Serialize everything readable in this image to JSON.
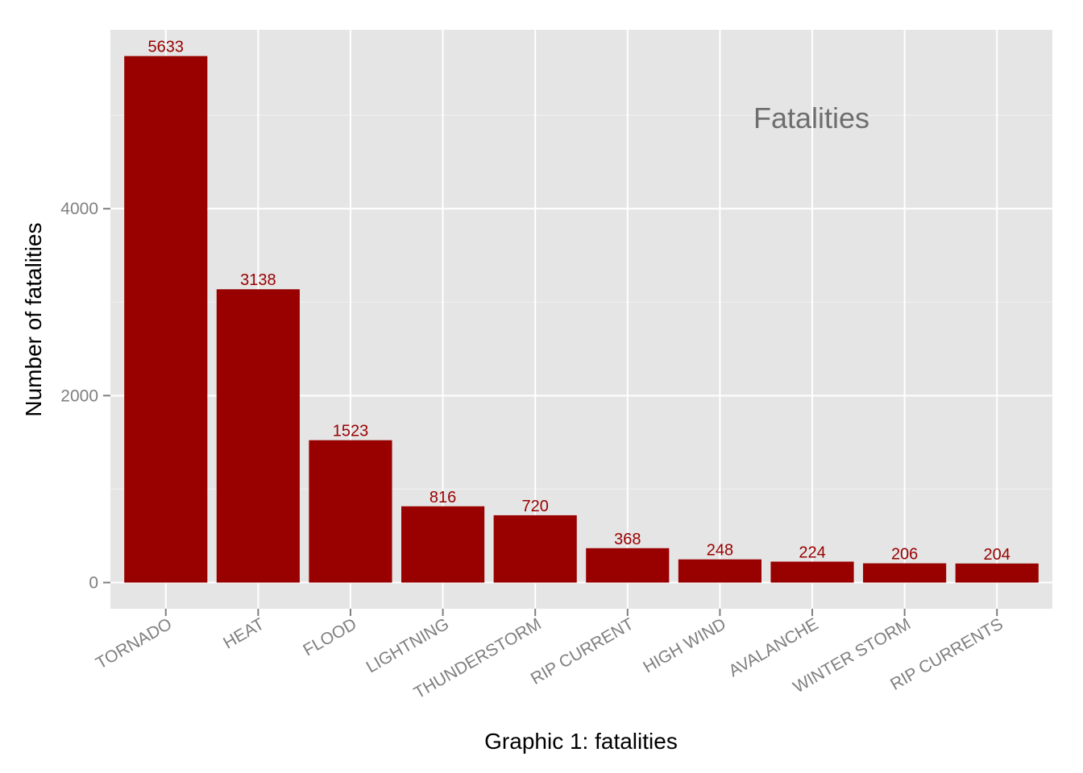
{
  "chart_data": {
    "type": "bar",
    "categories": [
      "TORNADO",
      "HEAT",
      "FLOOD",
      "LIGHTNING",
      "THUNDERSTORM",
      "RIP CURRENT",
      "HIGH WIND",
      "AVALANCHE",
      "WINTER STORM",
      "RIP CURRENTS"
    ],
    "values": [
      5633,
      3138,
      1523,
      816,
      720,
      368,
      248,
      224,
      206,
      204
    ],
    "data_labels": [
      "5633",
      "3138",
      "1523",
      "816",
      "720",
      "368",
      "248",
      "224",
      "206",
      "204"
    ],
    "xlabel": "Graphic 1: fatalities",
    "ylabel": "Number of fatalities",
    "annotation": "Fatalities",
    "yticks": [
      0,
      2000,
      4000
    ],
    "ytick_labels": [
      "0",
      "2000",
      "4000"
    ],
    "ylim": [
      -280,
      5914
    ],
    "grid": true,
    "x_tick_label_rotation": "angled",
    "colors": {
      "bar": "#990000",
      "data_label": "#990000",
      "panel_background": "#e5e5e5",
      "grid_major": "#ffffff",
      "grid_minor": "#f2f2f2",
      "tick_label": "#7f7f7f",
      "axis_title": "#000000",
      "annotation": "#6e6e6e"
    }
  }
}
